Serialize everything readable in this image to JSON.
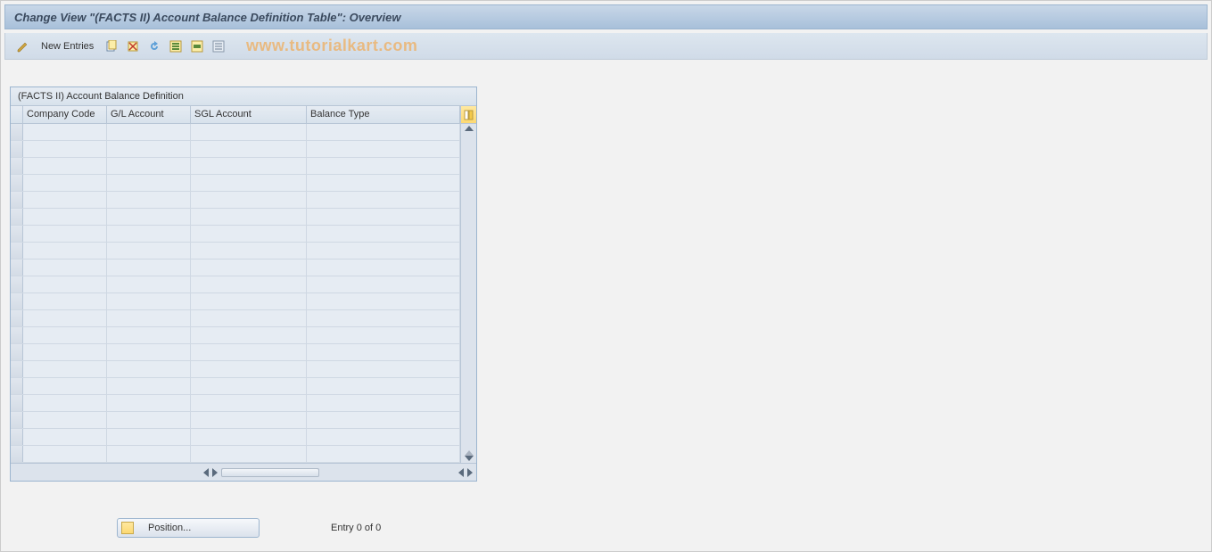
{
  "header": {
    "title": "Change View \"(FACTS II) Account Balance Definition Table\": Overview"
  },
  "toolbar": {
    "new_entries_label": "New Entries"
  },
  "watermark": "www.tutorialkart.com",
  "panel": {
    "title": "(FACTS II) Account Balance Definition",
    "columns": [
      {
        "label": "Company Code",
        "width_class": "w1"
      },
      {
        "label": "G/L Account",
        "width_class": "w2"
      },
      {
        "label": "SGL Account",
        "width_class": "w3"
      },
      {
        "label": "Balance Type",
        "width_class": "w4"
      }
    ],
    "row_count": 20
  },
  "footer": {
    "position_label": "Position...",
    "entry_text": "Entry 0 of 0"
  },
  "colors": {
    "title_gradient_top": "#c8d7e8",
    "title_gradient_bottom": "#a8c0da",
    "toolbar_bg": "#d6e0eb",
    "panel_border": "#9cb5cf",
    "cell_bg": "#e6ecf3"
  }
}
